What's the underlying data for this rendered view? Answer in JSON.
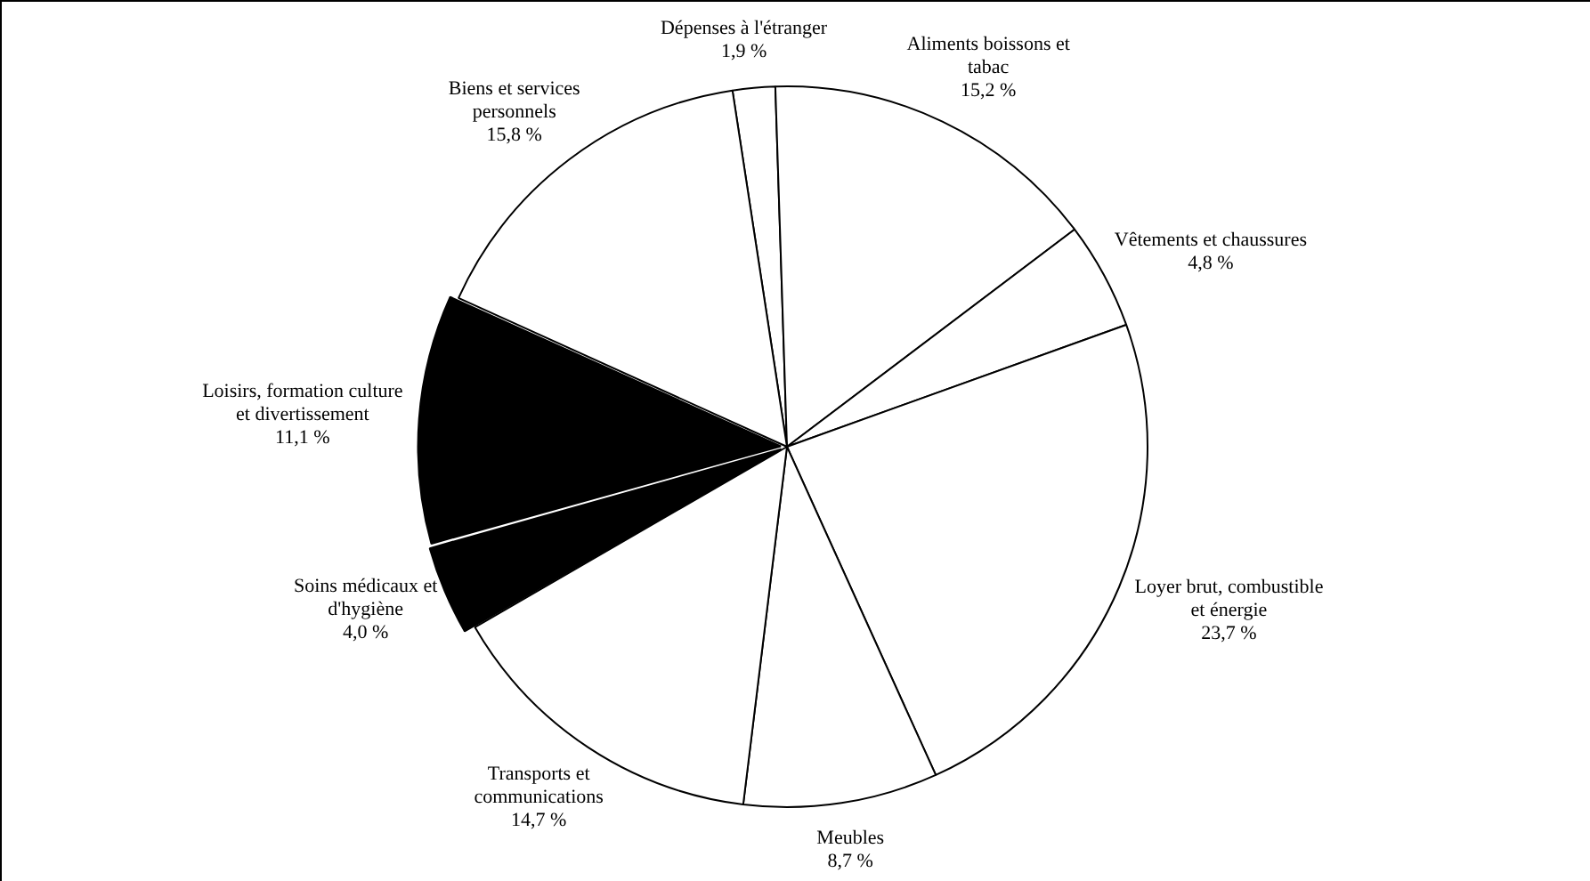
{
  "chart_data": {
    "type": "pie",
    "categories": [
      "Dépenses à l'étranger",
      "Aliments boissons et tabac",
      "Vêtements et chaussures",
      "Loyer brut, combustible et énergie",
      "Meubles",
      "Transports et communications",
      "Soins médicaux et d'hygiène",
      "Loisirs, formation culture et divertissement",
      "Biens et services personnels"
    ],
    "values": [
      1.9,
      15.2,
      4.8,
      23.7,
      8.7,
      14.7,
      4.0,
      11.1,
      15.8
    ],
    "colors": [
      "#ffffff",
      "#ffffff",
      "#ffffff",
      "#ffffff",
      "#ffffff",
      "#ffffff",
      "#000000",
      "#000000",
      "#ffffff"
    ],
    "value_labels": [
      "1,9 %",
      "15,2 %",
      "4,8 %",
      "23,7 %",
      "8,7 %",
      "14,7 %",
      "4,0 %",
      "11,1 %",
      "15,8 %"
    ],
    "legend": false
  }
}
